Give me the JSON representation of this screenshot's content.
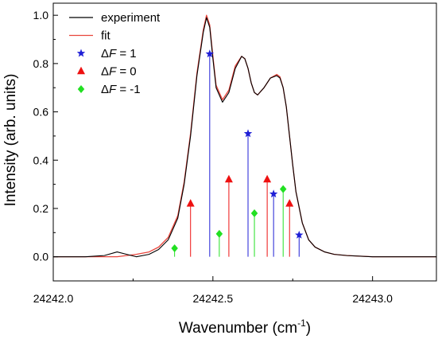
{
  "chart_data": {
    "type": "line",
    "xlabel": "Wavenumber (cm",
    "xlabel_sup": "-1",
    "xlabel_close": ")",
    "ylabel": "Intensity (arb. units)",
    "xlim": [
      24242.0,
      24243.2
    ],
    "ylim": [
      -0.1,
      1.05
    ],
    "x_ticks": [
      24242.0,
      24242.5,
      24243.0
    ],
    "x_tick_labels": [
      "24242.0",
      "24242.5",
      "24243.0"
    ],
    "y_ticks": [
      0.0,
      0.2,
      0.4,
      0.6,
      0.8,
      1.0
    ],
    "y_tick_labels": [
      "0.0",
      "0.2",
      "0.4",
      "0.6",
      "0.8",
      "1.0"
    ],
    "legend_position": "top-left",
    "colors": {
      "experiment": "#000000",
      "fit": "#e8453c",
      "dF_plus1": "#1f1fd6",
      "dF_zero": "#ee1111",
      "dF_minus1": "#22e022"
    },
    "series": [
      {
        "name": "experiment",
        "style": "line",
        "x": [
          24242.0,
          24242.1,
          24242.16,
          24242.2,
          24242.23,
          24242.26,
          24242.3,
          24242.33,
          24242.36,
          24242.39,
          24242.41,
          24242.43,
          24242.45,
          24242.47,
          24242.48,
          24242.49,
          24242.5,
          24242.51,
          24242.53,
          24242.55,
          24242.57,
          24242.59,
          24242.6,
          24242.61,
          24242.62,
          24242.63,
          24242.64,
          24242.66,
          24242.68,
          24242.7,
          24242.71,
          24242.72,
          24242.73,
          24242.74,
          24242.75,
          24242.76,
          24242.78,
          24242.8,
          24242.82,
          24242.85,
          24242.88,
          24242.92,
          24243.0,
          24243.1,
          24243.2
        ],
        "y": [
          0.0,
          0.0,
          0.005,
          0.02,
          0.01,
          0.0,
          0.01,
          0.03,
          0.07,
          0.16,
          0.3,
          0.5,
          0.75,
          0.93,
          0.99,
          0.95,
          0.82,
          0.7,
          0.64,
          0.68,
          0.78,
          0.83,
          0.82,
          0.78,
          0.72,
          0.68,
          0.67,
          0.7,
          0.74,
          0.75,
          0.74,
          0.7,
          0.62,
          0.5,
          0.38,
          0.27,
          0.14,
          0.07,
          0.04,
          0.02,
          0.01,
          0.005,
          0.0,
          0.0,
          0.0
        ]
      },
      {
        "name": "fit",
        "style": "line",
        "x": [
          24242.0,
          24242.1,
          24242.16,
          24242.2,
          24242.23,
          24242.26,
          24242.3,
          24242.33,
          24242.36,
          24242.39,
          24242.41,
          24242.43,
          24242.45,
          24242.47,
          24242.48,
          24242.49,
          24242.5,
          24242.51,
          24242.53,
          24242.55,
          24242.57,
          24242.59,
          24242.6,
          24242.61,
          24242.62,
          24242.63,
          24242.64,
          24242.66,
          24242.68,
          24242.7,
          24242.71,
          24242.72,
          24242.73,
          24242.74,
          24242.75,
          24242.76,
          24242.78,
          24242.8,
          24242.82,
          24242.85,
          24242.88,
          24242.92,
          24243.0,
          24243.1,
          24243.2
        ],
        "y": [
          0.0,
          0.0,
          0.0,
          0.0,
          0.005,
          0.01,
          0.02,
          0.04,
          0.08,
          0.17,
          0.31,
          0.51,
          0.76,
          0.94,
          1.0,
          0.96,
          0.83,
          0.71,
          0.65,
          0.69,
          0.79,
          0.83,
          0.82,
          0.78,
          0.72,
          0.68,
          0.67,
          0.7,
          0.74,
          0.755,
          0.745,
          0.7,
          0.62,
          0.5,
          0.38,
          0.27,
          0.14,
          0.07,
          0.04,
          0.02,
          0.01,
          0.005,
          0.0,
          0.0,
          0.0
        ]
      },
      {
        "name": "ΔF = 1",
        "legend_italic": "F",
        "legend_prefix": "Δ",
        "legend_suffix": " = 1",
        "style": "stick",
        "marker": "star",
        "x": [
          24242.49,
          24242.61,
          24242.69,
          24242.77
        ],
        "y": [
          0.84,
          0.51,
          0.26,
          0.09
        ]
      },
      {
        "name": "ΔF = 0",
        "legend_italic": "F",
        "legend_prefix": "Δ",
        "legend_suffix": " = 0",
        "style": "stick",
        "marker": "triangle",
        "x": [
          24242.43,
          24242.55,
          24242.67,
          24242.74
        ],
        "y": [
          0.22,
          0.32,
          0.32,
          0.22
        ]
      },
      {
        "name": "ΔF = -1",
        "legend_italic": "F",
        "legend_prefix": "Δ",
        "legend_suffix": " = -1",
        "style": "stick",
        "marker": "diamond",
        "x": [
          24242.38,
          24242.52,
          24242.63,
          24242.72
        ],
        "y": [
          0.035,
          0.095,
          0.18,
          0.28
        ]
      }
    ]
  }
}
